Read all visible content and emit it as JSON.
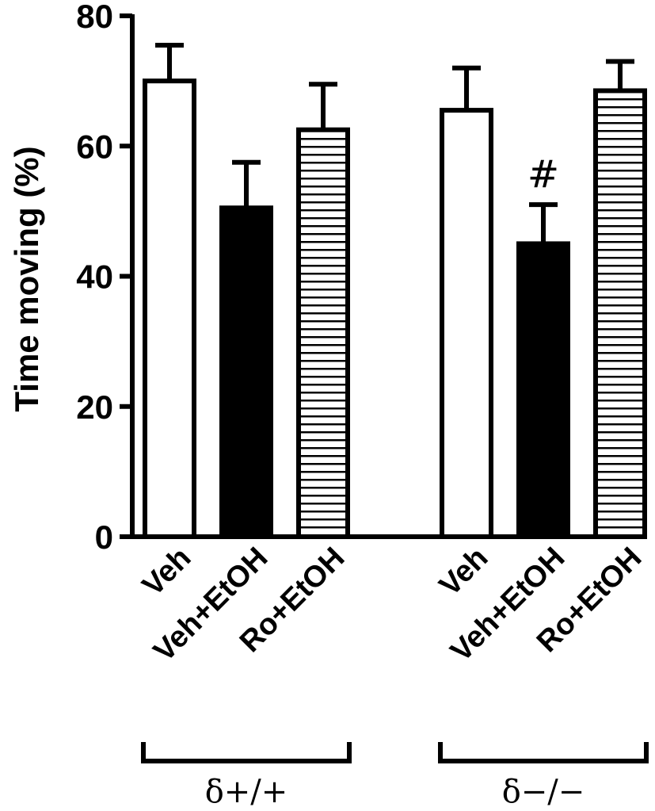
{
  "chart_data": {
    "type": "bar",
    "title": "",
    "ylabel": "Time moving (%)",
    "xlabel": "",
    "ylim": [
      0,
      80
    ],
    "yticks": [
      "0",
      "20",
      "40",
      "60",
      "80"
    ],
    "grid": false,
    "groups": [
      {
        "label": "δ+/+",
        "bars": [
          {
            "category": "Veh",
            "value": 70,
            "error": 5.5,
            "fill": "white",
            "annotation": ""
          },
          {
            "category": "Veh+EtOH",
            "value": 50.5,
            "error": 7,
            "fill": "black",
            "annotation": ""
          },
          {
            "category": "Ro+EtOH",
            "value": 62.5,
            "error": 7,
            "fill": "horizontal-stripes",
            "annotation": ""
          }
        ]
      },
      {
        "label": "δ−/−",
        "bars": [
          {
            "category": "Veh",
            "value": 65.5,
            "error": 6.5,
            "fill": "white",
            "annotation": ""
          },
          {
            "category": "Veh+EtOH",
            "value": 45,
            "error": 6,
            "fill": "black",
            "annotation": "#"
          },
          {
            "category": "Ro+EtOH",
            "value": 68.5,
            "error": 4.5,
            "fill": "horizontal-stripes",
            "annotation": ""
          }
        ]
      }
    ],
    "colors": {
      "ink": "#000000",
      "background": "#ffffff"
    }
  }
}
